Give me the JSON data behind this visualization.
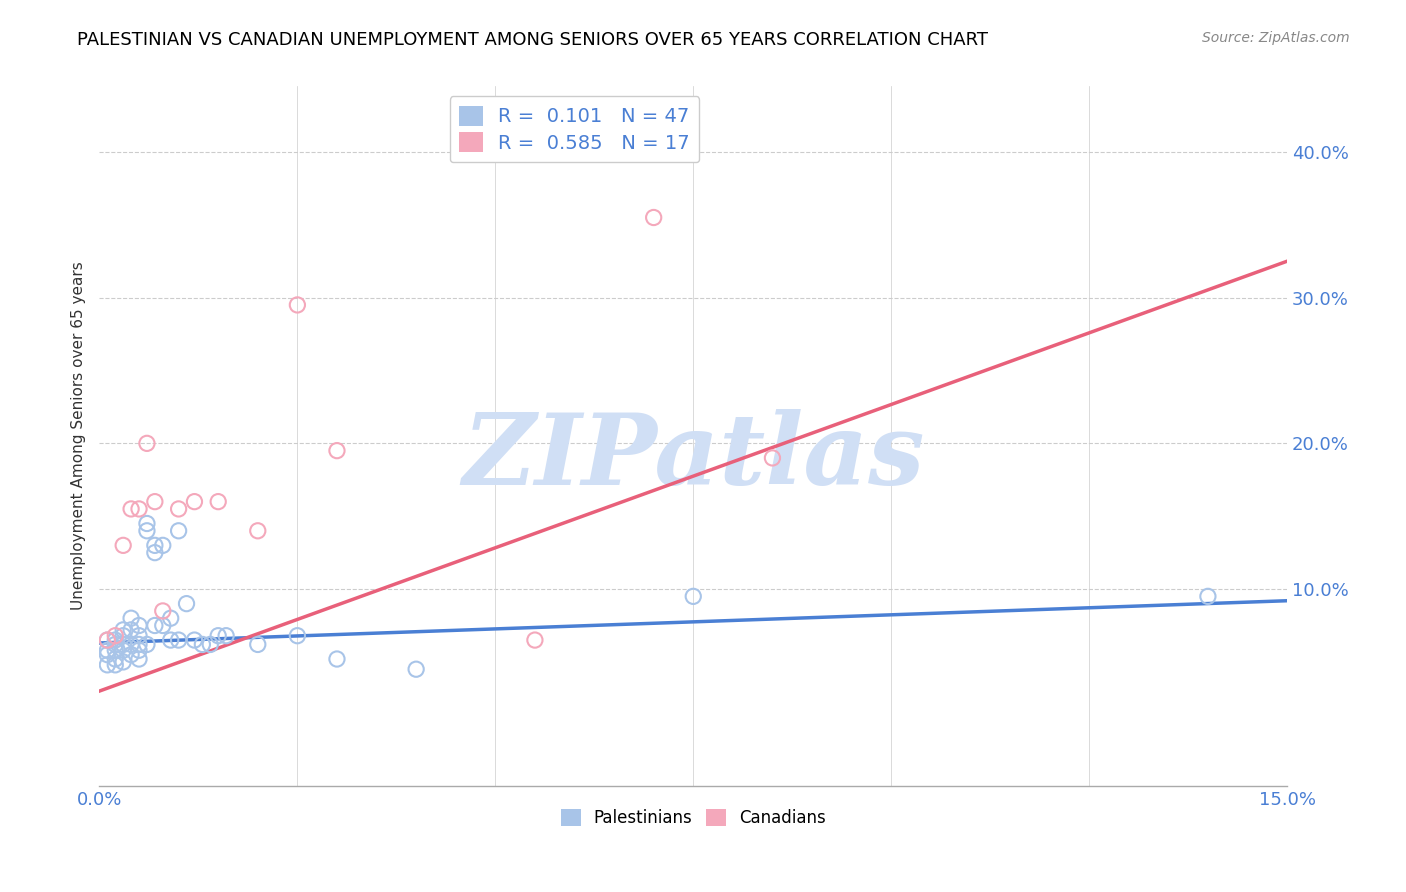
{
  "title": "PALESTINIAN VS CANADIAN UNEMPLOYMENT AMONG SENIORS OVER 65 YEARS CORRELATION CHART",
  "source": "Source: ZipAtlas.com",
  "ylabel": "Unemployment Among Seniors over 65 years",
  "xlim": [
    0.0,
    0.15
  ],
  "ylim": [
    -0.035,
    0.445
  ],
  "xticks": [
    0.0,
    0.025,
    0.05,
    0.075,
    0.1,
    0.125,
    0.15
  ],
  "yticks": [
    0.0,
    0.1,
    0.2,
    0.3,
    0.4
  ],
  "ytick_labels": [
    "",
    "10.0%",
    "20.0%",
    "30.0%",
    "40.0%"
  ],
  "blue_color": "#a8c4e8",
  "pink_color": "#f4a8bb",
  "blue_line_color": "#4a7fd4",
  "pink_line_color": "#e8607a",
  "watermark": "ZIPatlas",
  "watermark_color": "#d0dff5",
  "blue_dots_x": [
    0.001,
    0.001,
    0.001,
    0.001,
    0.002,
    0.002,
    0.002,
    0.002,
    0.002,
    0.003,
    0.003,
    0.003,
    0.003,
    0.003,
    0.004,
    0.004,
    0.004,
    0.004,
    0.005,
    0.005,
    0.005,
    0.005,
    0.005,
    0.006,
    0.006,
    0.006,
    0.007,
    0.007,
    0.007,
    0.008,
    0.008,
    0.009,
    0.009,
    0.01,
    0.01,
    0.011,
    0.012,
    0.013,
    0.014,
    0.015,
    0.016,
    0.02,
    0.025,
    0.03,
    0.04,
    0.075,
    0.14
  ],
  "blue_dots_y": [
    0.065,
    0.058,
    0.055,
    0.048,
    0.065,
    0.062,
    0.058,
    0.052,
    0.048,
    0.072,
    0.068,
    0.062,
    0.058,
    0.05,
    0.08,
    0.072,
    0.062,
    0.055,
    0.075,
    0.068,
    0.062,
    0.058,
    0.052,
    0.145,
    0.14,
    0.062,
    0.13,
    0.125,
    0.075,
    0.13,
    0.075,
    0.08,
    0.065,
    0.14,
    0.065,
    0.09,
    0.065,
    0.062,
    0.062,
    0.068,
    0.068,
    0.062,
    0.068,
    0.052,
    0.045,
    0.095,
    0.095
  ],
  "pink_dots_x": [
    0.001,
    0.002,
    0.003,
    0.004,
    0.005,
    0.006,
    0.007,
    0.008,
    0.01,
    0.012,
    0.015,
    0.02,
    0.025,
    0.03,
    0.055,
    0.07,
    0.085
  ],
  "pink_dots_y": [
    0.065,
    0.068,
    0.13,
    0.155,
    0.155,
    0.2,
    0.16,
    0.085,
    0.155,
    0.16,
    0.16,
    0.14,
    0.295,
    0.195,
    0.065,
    0.355,
    0.19
  ],
  "blue_trend_x": [
    0.0,
    0.15
  ],
  "blue_trend_y": [
    0.063,
    0.092
  ],
  "pink_trend_x": [
    0.0,
    0.15
  ],
  "pink_trend_y": [
    0.03,
    0.325
  ]
}
